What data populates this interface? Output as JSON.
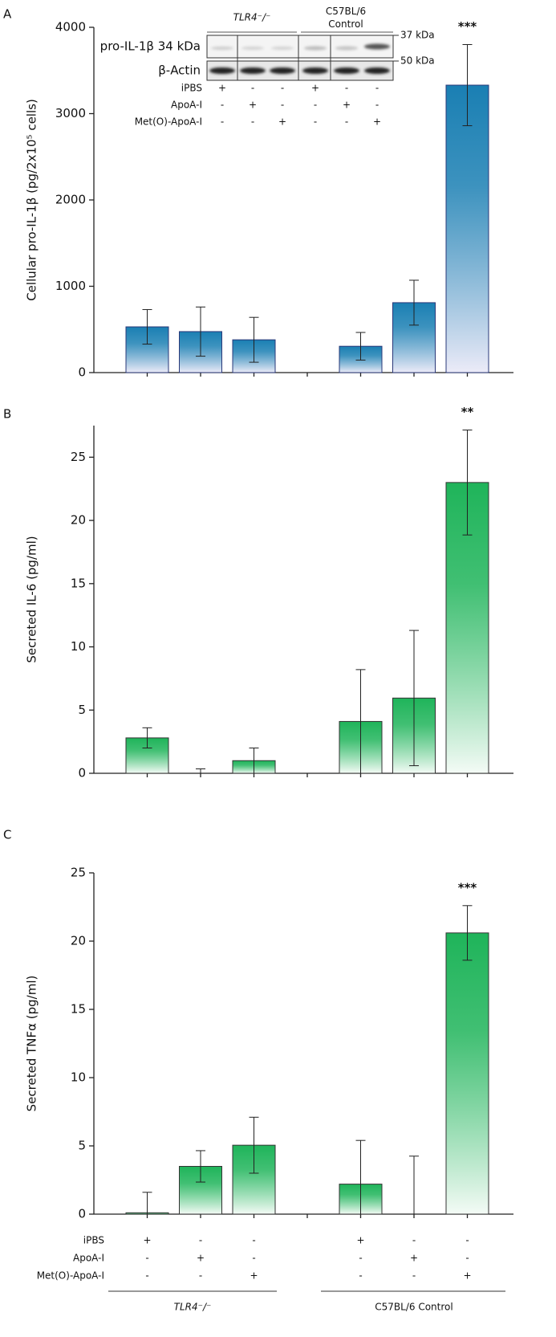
{
  "chart_data": [
    {
      "type": "bar",
      "panel": "A",
      "y_label": "Cellular pro-IL-1β (pg/2x10⁵ cells)",
      "values": [
        530,
        475,
        380,
        305,
        810,
        3330
      ],
      "errors": [
        200,
        285,
        260,
        160,
        260,
        470
      ],
      "color": "#1a7fb3",
      "ylim": [
        0,
        4000
      ],
      "yticks": [
        0,
        1000,
        2000,
        3000,
        4000
      ],
      "significance": "***"
    },
    {
      "type": "bar",
      "panel": "B",
      "y_label": "Secreted IL-6 (pg/ml)",
      "values": [
        2.8,
        0,
        1.0,
        4.1,
        5.95,
        23.0
      ],
      "errors": [
        0.8,
        0.35,
        1.0,
        4.1,
        5.35,
        4.15
      ],
      "color": "#1fb45a",
      "ylim": [
        0,
        27.5
      ],
      "yticks": [
        0,
        5,
        10,
        15,
        20,
        25
      ],
      "significance": "**"
    },
    {
      "type": "bar",
      "panel": "C",
      "y_label": "Secreted TNFα (pg/ml)",
      "values": [
        0.1,
        3.5,
        5.05,
        2.2,
        0,
        20.6
      ],
      "errors": [
        1.5,
        1.15,
        2.05,
        3.2,
        4.25,
        2.0
      ],
      "color": "#1fb45a",
      "ylim": [
        0,
        25
      ],
      "yticks": [
        0,
        5,
        10,
        15,
        20,
        25
      ],
      "significance": "***"
    }
  ],
  "treatments": {
    "rows": [
      {
        "name": "iPBS",
        "signs": [
          "+",
          "-",
          "-",
          "+",
          "-",
          "-"
        ]
      },
      {
        "name": "ApoA-I",
        "signs": [
          "-",
          "+",
          "-",
          "-",
          "+",
          "-"
        ]
      },
      {
        "name": "Met(O)-ApoA-I",
        "signs": [
          "-",
          "-",
          "+",
          "-",
          "-",
          "+"
        ]
      }
    ],
    "groups": [
      "TLR4⁻/⁻",
      "C57BL/6 Control"
    ]
  },
  "blot": {
    "bands": [
      "pro-IL-1β 34 kDa",
      "β-Actin"
    ],
    "markers": [
      "37 kDa",
      "50 kDa"
    ]
  }
}
